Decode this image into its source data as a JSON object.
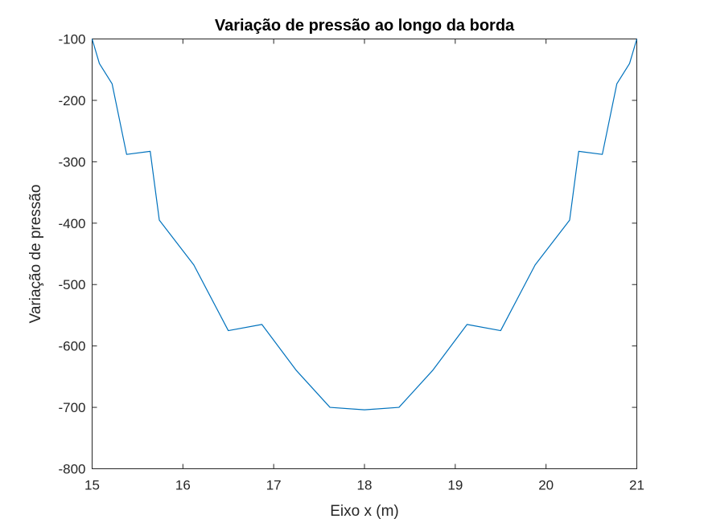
{
  "chart_data": {
    "type": "line",
    "title": "Variação de pressão ao longo da borda",
    "xlabel": "Eixo x (m)",
    "ylabel": "Variação de pressão",
    "xlim": [
      15,
      21
    ],
    "ylim": [
      -800,
      -100
    ],
    "xticks": [
      15,
      16,
      17,
      18,
      19,
      20,
      21
    ],
    "yticks": [
      -100,
      -200,
      -300,
      -400,
      -500,
      -600,
      -700,
      -800
    ],
    "grid": false,
    "color": "#0072BD",
    "series": [
      {
        "x": [
          15.0,
          15.08,
          15.22,
          15.38,
          15.64,
          15.74,
          16.12,
          16.5,
          16.87,
          17.25,
          17.62,
          18.0,
          18.38,
          18.75,
          19.13,
          19.5,
          19.88,
          20.26,
          20.36,
          20.62,
          20.78,
          20.92,
          21.0
        ],
        "y": [
          -100,
          -140,
          -173,
          -288,
          -283,
          -395,
          -468,
          -575,
          -565,
          -640,
          -700,
          -704,
          -700,
          -640,
          -565,
          -575,
          -468,
          -395,
          -283,
          -288,
          -173,
          -140,
          -100
        ]
      }
    ]
  }
}
